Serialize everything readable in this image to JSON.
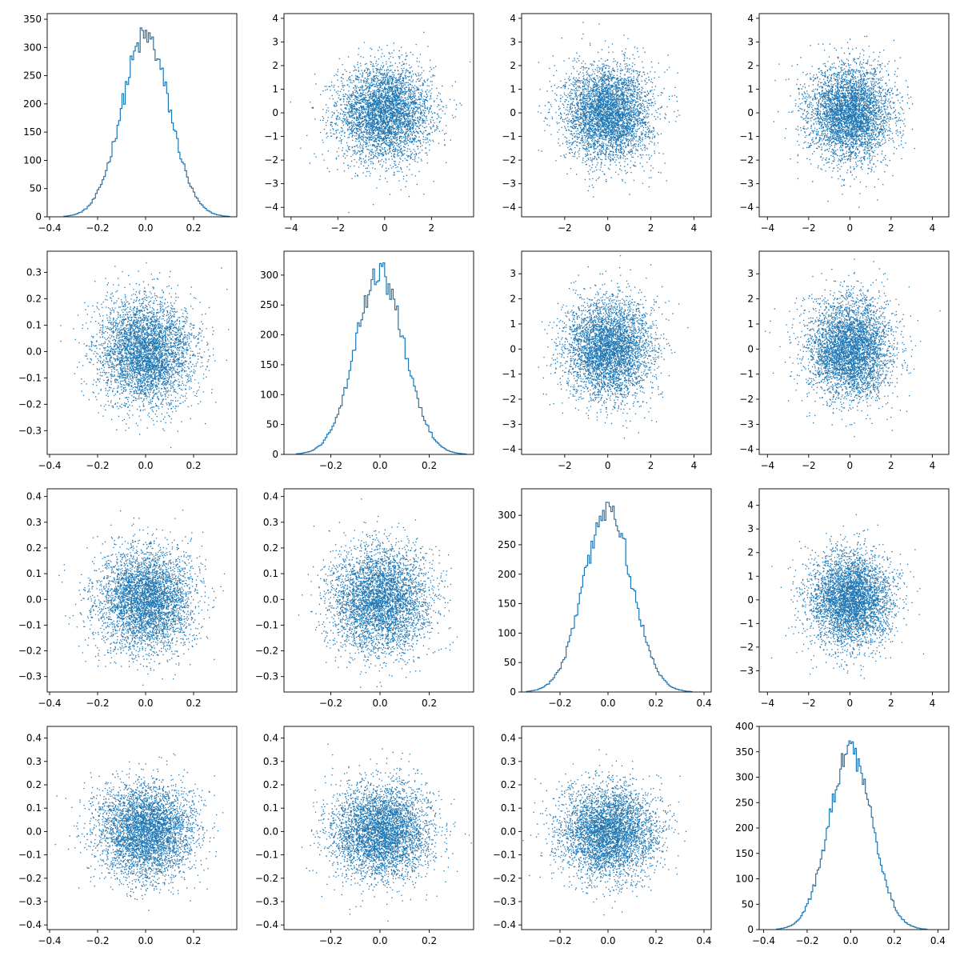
{
  "figure": {
    "marker_color": "#1f77b4",
    "axis_color": "#000000",
    "background": "#ffffff"
  },
  "chart_data": [
    {
      "type": "histogram",
      "panel": "1-1",
      "xlim": [
        -0.41,
        0.38
      ],
      "ylim": [
        0,
        360
      ],
      "xticks": [
        "-0.4",
        "-0.2",
        "0.0",
        "0.2"
      ],
      "yticks": [
        "0",
        "50",
        "100",
        "150",
        "200",
        "250",
        "300",
        "350"
      ],
      "distribution": {
        "mean": 0.0,
        "std": 0.1,
        "peak_count": 343
      }
    },
    {
      "type": "scatter",
      "panel": "1-2",
      "xlim": [
        -4.3,
        3.8
      ],
      "ylim": [
        -4.4,
        4.2
      ],
      "xticks": [
        "-4",
        "-2",
        "0",
        "2"
      ],
      "yticks": [
        "-4",
        "-3",
        "-2",
        "-1",
        "0",
        "1",
        "2",
        "3",
        "4"
      ],
      "distribution": {
        "mean_x": 0,
        "std_x": 1,
        "mean_y": 0,
        "std_y": 1
      }
    },
    {
      "type": "scatter",
      "panel": "1-3",
      "xlim": [
        -4.0,
        4.8
      ],
      "ylim": [
        -4.4,
        4.2
      ],
      "xticks": [
        "-2",
        "0",
        "2",
        "4"
      ],
      "yticks": [
        "-4",
        "-3",
        "-2",
        "-1",
        "0",
        "1",
        "2",
        "3",
        "4"
      ],
      "distribution": {
        "mean_x": 0,
        "std_x": 1,
        "mean_y": 0,
        "std_y": 1
      }
    },
    {
      "type": "scatter",
      "panel": "1-4",
      "xlim": [
        -4.4,
        4.8
      ],
      "ylim": [
        -4.4,
        4.2
      ],
      "xticks": [
        "-4",
        "-2",
        "0",
        "2",
        "4"
      ],
      "yticks": [
        "-4",
        "-3",
        "-2",
        "-1",
        "0",
        "1",
        "2",
        "3",
        "4"
      ],
      "distribution": {
        "mean_x": 0,
        "std_x": 1,
        "mean_y": 0,
        "std_y": 1
      }
    },
    {
      "type": "scatter",
      "panel": "2-1",
      "xlim": [
        -0.41,
        0.38
      ],
      "ylim": [
        -0.39,
        0.38
      ],
      "xticks": [
        "-0.4",
        "-0.2",
        "0.0",
        "0.2"
      ],
      "yticks": [
        "-0.3",
        "-0.2",
        "-0.1",
        "0.0",
        "0.1",
        "0.2",
        "0.3"
      ],
      "distribution": {
        "mean_x": 0,
        "std_x": 0.1,
        "mean_y": 0,
        "std_y": 0.1
      }
    },
    {
      "type": "histogram",
      "panel": "2-2",
      "xlim": [
        -0.39,
        0.38
      ],
      "ylim": [
        0,
        340
      ],
      "xticks": [
        "-0.2",
        "0.0",
        "0.2"
      ],
      "yticks": [
        "0",
        "50",
        "100",
        "150",
        "200",
        "250",
        "300"
      ],
      "distribution": {
        "mean": 0.0,
        "std": 0.1,
        "peak_count": 324
      }
    },
    {
      "type": "scatter",
      "panel": "2-3",
      "xlim": [
        -4.0,
        4.8
      ],
      "ylim": [
        -4.2,
        3.9
      ],
      "xticks": [
        "-2",
        "0",
        "2",
        "4"
      ],
      "yticks": [
        "-4",
        "-3",
        "-2",
        "-1",
        "0",
        "1",
        "2",
        "3"
      ],
      "distribution": {
        "mean_x": 0,
        "std_x": 1,
        "mean_y": 0,
        "std_y": 1
      }
    },
    {
      "type": "scatter",
      "panel": "2-4",
      "xlim": [
        -4.4,
        4.8
      ],
      "ylim": [
        -4.2,
        3.9
      ],
      "xticks": [
        "-4",
        "-2",
        "0",
        "2",
        "4"
      ],
      "yticks": [
        "-4",
        "-3",
        "-2",
        "-1",
        "0",
        "1",
        "2",
        "3"
      ],
      "distribution": {
        "mean_x": 0,
        "std_x": 1,
        "mean_y": 0,
        "std_y": 1
      }
    },
    {
      "type": "scatter",
      "panel": "3-1",
      "xlim": [
        -0.41,
        0.38
      ],
      "ylim": [
        -0.36,
        0.43
      ],
      "xticks": [
        "-0.4",
        "-0.2",
        "0.0",
        "0.2"
      ],
      "yticks": [
        "-0.3",
        "-0.2",
        "-0.1",
        "0.0",
        "0.1",
        "0.2",
        "0.3",
        "0.4"
      ],
      "distribution": {
        "mean_x": 0,
        "std_x": 0.1,
        "mean_y": 0,
        "std_y": 0.1
      }
    },
    {
      "type": "scatter",
      "panel": "3-2",
      "xlim": [
        -0.39,
        0.38
      ],
      "ylim": [
        -0.36,
        0.43
      ],
      "xticks": [
        "-0.2",
        "0.0",
        "0.2"
      ],
      "yticks": [
        "-0.3",
        "-0.2",
        "-0.1",
        "0.0",
        "0.1",
        "0.2",
        "0.3",
        "0.4"
      ],
      "distribution": {
        "mean_x": 0,
        "std_x": 0.1,
        "mean_y": 0,
        "std_y": 0.1
      }
    },
    {
      "type": "histogram",
      "panel": "3-3",
      "xlim": [
        -0.36,
        0.43
      ],
      "ylim": [
        0,
        345
      ],
      "xticks": [
        "-0.2",
        "0.0",
        "0.2",
        "0.4"
      ],
      "yticks": [
        "0",
        "50",
        "100",
        "150",
        "200",
        "250",
        "300"
      ],
      "distribution": {
        "mean": 0.0,
        "std": 0.1,
        "peak_count": 332
      }
    },
    {
      "type": "scatter",
      "panel": "3-4",
      "xlim": [
        -4.4,
        4.8
      ],
      "ylim": [
        -3.9,
        4.7
      ],
      "xticks": [
        "-4",
        "-2",
        "0",
        "2",
        "4"
      ],
      "yticks": [
        "-3",
        "-2",
        "-1",
        "0",
        "1",
        "2",
        "3",
        "4"
      ],
      "distribution": {
        "mean_x": 0,
        "std_x": 1,
        "mean_y": 0,
        "std_y": 1
      }
    },
    {
      "type": "scatter",
      "panel": "4-1",
      "xlim": [
        -0.41,
        0.38
      ],
      "ylim": [
        -0.42,
        0.45
      ],
      "xticks": [
        "-0.4",
        "-0.2",
        "0.0",
        "0.2"
      ],
      "yticks": [
        "-0.4",
        "-0.3",
        "-0.2",
        "-0.1",
        "0.0",
        "0.1",
        "0.2",
        "0.3",
        "0.4"
      ],
      "distribution": {
        "mean_x": 0,
        "std_x": 0.1,
        "mean_y": 0,
        "std_y": 0.1
      }
    },
    {
      "type": "scatter",
      "panel": "4-2",
      "xlim": [
        -0.39,
        0.38
      ],
      "ylim": [
        -0.42,
        0.45
      ],
      "xticks": [
        "-0.2",
        "0.0",
        "0.2"
      ],
      "yticks": [
        "-0.4",
        "-0.3",
        "-0.2",
        "-0.1",
        "0.0",
        "0.1",
        "0.2",
        "0.3",
        "0.4"
      ],
      "distribution": {
        "mean_x": 0,
        "std_x": 0.1,
        "mean_y": 0,
        "std_y": 0.1
      }
    },
    {
      "type": "scatter",
      "panel": "4-3",
      "xlim": [
        -0.36,
        0.43
      ],
      "ylim": [
        -0.42,
        0.45
      ],
      "xticks": [
        "-0.2",
        "0.0",
        "0.2",
        "0.4"
      ],
      "yticks": [
        "-0.4",
        "-0.3",
        "-0.2",
        "-0.1",
        "0.0",
        "0.1",
        "0.2",
        "0.3",
        "0.4"
      ],
      "distribution": {
        "mean_x": 0,
        "std_x": 0.1,
        "mean_y": 0,
        "std_y": 0.1
      }
    },
    {
      "type": "histogram",
      "panel": "4-4",
      "xlim": [
        -0.42,
        0.45
      ],
      "ylim": [
        0,
        400
      ],
      "xticks": [
        "-0.4",
        "-0.2",
        "0.0",
        "0.2",
        "0.4"
      ],
      "yticks": [
        "0",
        "50",
        "100",
        "150",
        "200",
        "250",
        "300",
        "350",
        "400"
      ],
      "distribution": {
        "mean": 0.0,
        "std": 0.1,
        "peak_count": 380
      }
    }
  ]
}
